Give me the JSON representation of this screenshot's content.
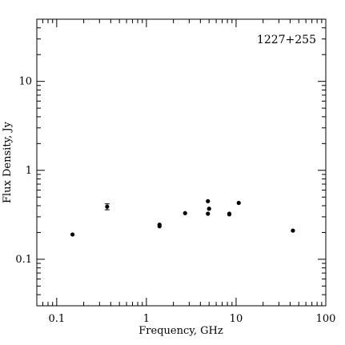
{
  "chart_data": {
    "type": "scatter",
    "source_label": "1227+255",
    "xlabel": "Frequency, GHz",
    "ylabel": "Flux Density, Jy",
    "x_scale": "log",
    "y_scale": "log",
    "xlim": [
      0.06,
      100
    ],
    "ylim": [
      0.03,
      50
    ],
    "x_tick_labels": [
      {
        "value": 0.1,
        "label": "0.1"
      },
      {
        "value": 1,
        "label": "1"
      },
      {
        "value": 10,
        "label": "10"
      },
      {
        "value": 100,
        "label": "100"
      }
    ],
    "y_tick_labels": [
      {
        "value": 0.1,
        "label": "0.1"
      },
      {
        "value": 1,
        "label": "1"
      },
      {
        "value": 10,
        "label": "10"
      }
    ],
    "grid": false,
    "marker_color": "#000000",
    "points": [
      {
        "x": 0.15,
        "y": 0.19
      },
      {
        "x": 0.365,
        "y": 0.39,
        "err": 0.03
      },
      {
        "x": 1.4,
        "y": 0.245
      },
      {
        "x": 1.4,
        "y": 0.235
      },
      {
        "x": 2.7,
        "y": 0.33
      },
      {
        "x": 4.85,
        "y": 0.45
      },
      {
        "x": 5.0,
        "y": 0.37
      },
      {
        "x": 4.85,
        "y": 0.325
      },
      {
        "x": 8.4,
        "y": 0.325
      },
      {
        "x": 8.4,
        "y": 0.32
      },
      {
        "x": 10.7,
        "y": 0.43
      },
      {
        "x": 43,
        "y": 0.21
      }
    ]
  }
}
